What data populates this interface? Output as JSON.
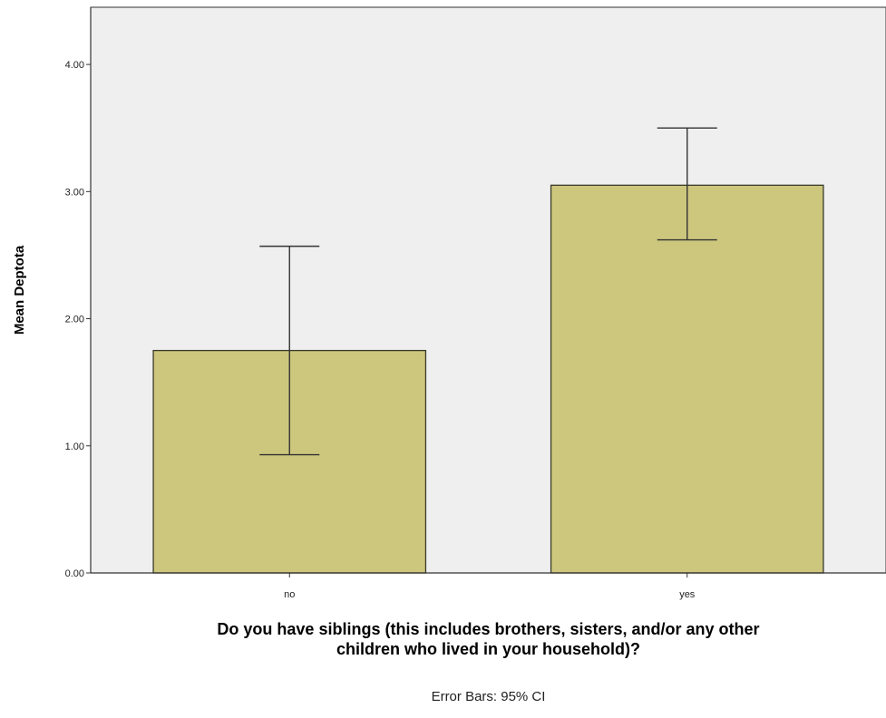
{
  "chart_data": {
    "type": "bar",
    "categories": [
      "no",
      "yes"
    ],
    "values": [
      1.75,
      3.05
    ],
    "error_bars": {
      "lower": [
        0.93,
        2.62
      ],
      "upper": [
        2.57,
        3.5
      ]
    },
    "ylabel": "Mean Deptota",
    "xlabel_lines": [
      "Do you have siblings (this includes brothers, sisters, and/or any other",
      "children who lived in your household)?"
    ],
    "note": "Error Bars: 95% CI",
    "yticks": [
      "0.00",
      "1.00",
      "2.00",
      "3.00",
      "4.00"
    ],
    "ylim": [
      0,
      4.45
    ],
    "grid": false,
    "colors": {
      "bar_fill": "#cdc67d",
      "bar_stroke": "#3a3a2a",
      "plot_bg": "#efefef",
      "error_bar": "#333333"
    }
  }
}
